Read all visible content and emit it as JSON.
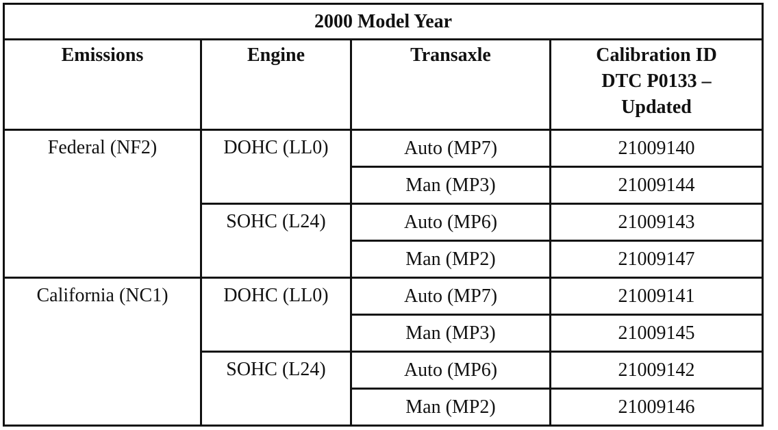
{
  "table": {
    "title": "2000 Model Year",
    "headers": {
      "emissions": "Emissions",
      "engine": "Engine",
      "transaxle": "Transaxle",
      "calibration_lines": [
        "Calibration ID",
        "DTC P0133 –",
        "Updated"
      ]
    },
    "groups": [
      {
        "emissions": "Federal (NF2)",
        "engines": [
          {
            "engine": "DOHC (LL0)",
            "rows": [
              {
                "transaxle": "Auto (MP7)",
                "calibration_id": "21009140"
              },
              {
                "transaxle": "Man (MP3)",
                "calibration_id": "21009144"
              }
            ]
          },
          {
            "engine": "SOHC (L24)",
            "rows": [
              {
                "transaxle": "Auto (MP6)",
                "calibration_id": "21009143"
              },
              {
                "transaxle": "Man (MP2)",
                "calibration_id": "21009147"
              }
            ]
          }
        ]
      },
      {
        "emissions": "California (NC1)",
        "engines": [
          {
            "engine": "DOHC (LL0)",
            "rows": [
              {
                "transaxle": "Auto (MP7)",
                "calibration_id": "21009141"
              },
              {
                "transaxle": "Man (MP3)",
                "calibration_id": "21009145"
              }
            ]
          },
          {
            "engine": "SOHC (L24)",
            "rows": [
              {
                "transaxle": "Auto (MP6)",
                "calibration_id": "21009142"
              },
              {
                "transaxle": "Man (MP2)",
                "calibration_id": "21009146"
              }
            ]
          }
        ]
      }
    ]
  }
}
